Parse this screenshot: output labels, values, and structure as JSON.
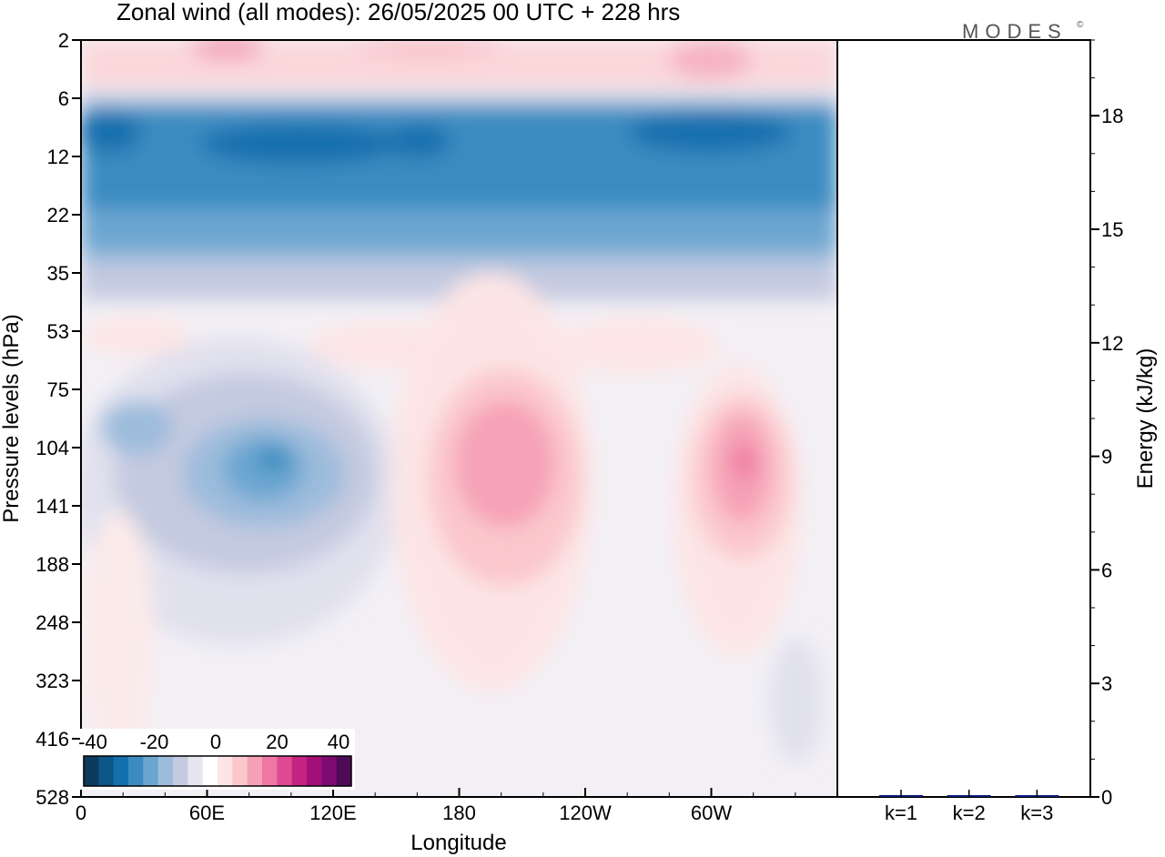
{
  "header": {
    "title": "Zonal wind (all modes):  26/05/2025  00 UTC  + 228 hrs",
    "logo": "MODES",
    "logo_mark": "©"
  },
  "chart_data": [
    {
      "type": "heatmap",
      "title": "Zonal wind (all modes):  26/05/2025  00 UTC  + 228 hrs",
      "xlabel": "Longitude",
      "ylabel": "Pressure levels (hPa)",
      "x_ticks": [
        "0",
        "60E",
        "120E",
        "180",
        "120W",
        "60W"
      ],
      "x_tick_values": [
        0,
        60,
        120,
        180,
        240,
        300
      ],
      "xlim": [
        0,
        360
      ],
      "y_ticks": [
        "2",
        "6",
        "12",
        "22",
        "35",
        "53",
        "75",
        "104",
        "141",
        "188",
        "248",
        "323",
        "416",
        "528"
      ],
      "y_scale": "level-index",
      "colorbar": {
        "ticks": [
          "-40",
          "-20",
          "0",
          "20",
          "40"
        ],
        "tick_values": [
          -40,
          -20,
          0,
          20,
          40
        ],
        "colors": [
          "#0c3b5e",
          "#0b5587",
          "#1470ad",
          "#3a8bc1",
          "#6aa6d0",
          "#9dbcdc",
          "#c4cae0",
          "#e6e6f0",
          "#ffffff",
          "#fde5e5",
          "#fbc7cc",
          "#f6a2b6",
          "#ee77a3",
          "#de4a92",
          "#c52382",
          "#a30f77",
          "#7d0a6f",
          "#4e0a56"
        ]
      },
      "features": [
        {
          "name": "stratospheric easterly band",
          "lon": [
            0,
            360
          ],
          "level": [
            6,
            35
          ],
          "value_min": -36
        },
        {
          "name": "lower stratosphere westerlies",
          "lon": [
            0,
            360
          ],
          "level": [
            2,
            6
          ],
          "value_max": 16
        },
        {
          "name": "easterly core",
          "lon": [
            40,
            150
          ],
          "level": [
            75,
            323
          ],
          "value_min": -24
        },
        {
          "name": "westerly core",
          "lon": [
            160,
            240
          ],
          "level": [
            53,
            416
          ],
          "value_max": 22
        },
        {
          "name": "westerly core east",
          "lon": [
            285,
            340
          ],
          "level": [
            75,
            323
          ],
          "value_max": 28
        }
      ]
    },
    {
      "type": "bar",
      "ylabel": "Energy (kJ/kg)",
      "categories": [
        "k=1",
        "k=2",
        "k=3"
      ],
      "values": [
        0.05,
        0.02,
        0.0
      ],
      "ylim": [
        0,
        20
      ],
      "y_ticks": [
        "0",
        "3",
        "6",
        "9",
        "12",
        "15",
        "18"
      ],
      "y_tick_values": [
        0,
        3,
        6,
        9,
        12,
        15,
        18
      ],
      "bar_color": "#0a1a7a"
    }
  ]
}
